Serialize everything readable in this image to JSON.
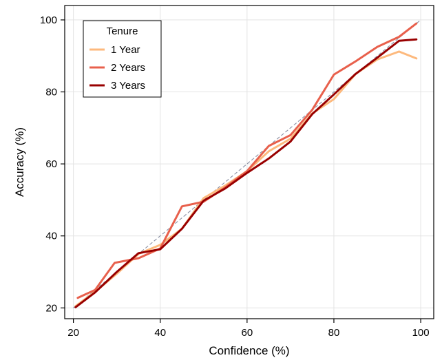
{
  "chart_data": {
    "type": "line",
    "xlabel": "Confidence (%)",
    "ylabel": "Accuracy (%)",
    "xlim": [
      18,
      103
    ],
    "ylim": [
      17,
      104
    ],
    "xticks": [
      20,
      40,
      60,
      80,
      100
    ],
    "yticks": [
      20,
      40,
      60,
      80,
      100
    ],
    "grid": true,
    "reference_line": {
      "x": [
        20,
        100
      ],
      "y": [
        20,
        100
      ],
      "style": "dashed",
      "color": "#8a8fa3"
    },
    "legend": {
      "title": "Tenure",
      "placement": "top-left"
    },
    "series": [
      {
        "name": "1 Year",
        "color": "#fdb97d",
        "x": [
          20.5,
          25,
          30,
          35,
          40,
          45,
          50,
          55,
          60,
          65,
          70,
          75,
          80,
          85,
          90,
          95,
          99
        ],
        "y": [
          20.5,
          24.5,
          29.5,
          35,
          37.5,
          42,
          50.5,
          54,
          58,
          63.5,
          67,
          74,
          78,
          85,
          89,
          91.2,
          89.3
        ]
      },
      {
        "name": "2 Years",
        "color": "#e8604c",
        "x": [
          21,
          25,
          29.5,
          35,
          40,
          45,
          50,
          55,
          60,
          65,
          70,
          75,
          80,
          85,
          90,
          95,
          99
        ],
        "y": [
          22.8,
          25,
          32.5,
          33.8,
          36.5,
          48.2,
          49.5,
          53.5,
          58,
          65,
          68,
          75,
          84.8,
          88.5,
          92.5,
          95.3,
          99
        ]
      },
      {
        "name": "3 Years",
        "color": "#990000",
        "x": [
          20.5,
          25,
          30,
          35,
          40,
          45,
          50,
          55,
          60,
          65,
          70,
          75,
          80,
          85,
          90,
          95,
          99
        ],
        "y": [
          20.2,
          24.3,
          30,
          35.2,
          36.3,
          42,
          49.8,
          53.2,
          57.5,
          61.5,
          66.2,
          73.8,
          79.3,
          85,
          89.5,
          94.2,
          94.6
        ]
      }
    ]
  }
}
